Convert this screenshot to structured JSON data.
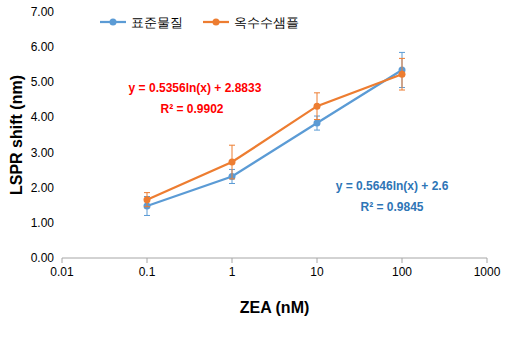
{
  "chart_data": {
    "type": "line",
    "x_label": "ZEA (nM)",
    "y_label": "LSPR shift (nm)",
    "x": [
      0.1,
      1,
      10,
      100
    ],
    "series": [
      {
        "name": "표준물질",
        "color": "#5b9bd5",
        "marker": "circle",
        "values": [
          1.48,
          2.32,
          3.84,
          5.35
        ],
        "errors": [
          0.27,
          0.2,
          0.2,
          0.5
        ]
      },
      {
        "name": "옥수수샘플",
        "color": "#ed7d31",
        "marker": "circle",
        "values": [
          1.66,
          2.73,
          4.32,
          5.23
        ],
        "errors": [
          0.2,
          0.48,
          0.38,
          0.45
        ]
      }
    ],
    "annotations": [
      {
        "text": "y = 0.5356ln(x) + 2.8833",
        "color": "#ff0000"
      },
      {
        "text": "R² = 0.9902",
        "color": "#ff0000"
      },
      {
        "text": "y = 0.5646ln(x) + 2.6",
        "color": "#2e75b6"
      },
      {
        "text": "R² = 0.9845",
        "color": "#2e75b6"
      }
    ],
    "log": "x",
    "xlim": [
      0.01,
      1000
    ],
    "xticks": [
      0.01,
      0.1,
      1,
      10,
      100,
      1000
    ],
    "ylim": [
      0,
      7
    ],
    "yticks": [
      {
        "value": 0,
        "label": "0.00"
      },
      {
        "value": 1,
        "label": "1.00"
      },
      {
        "value": 2,
        "label": "2.00"
      },
      {
        "value": 3,
        "label": "3.00"
      },
      {
        "value": 4,
        "label": "4.00"
      },
      {
        "value": 5,
        "label": "5.00"
      },
      {
        "value": 6,
        "label": "6.00"
      },
      {
        "value": 7,
        "label": "7.00"
      }
    ],
    "grid": false,
    "legend": "top-left"
  }
}
